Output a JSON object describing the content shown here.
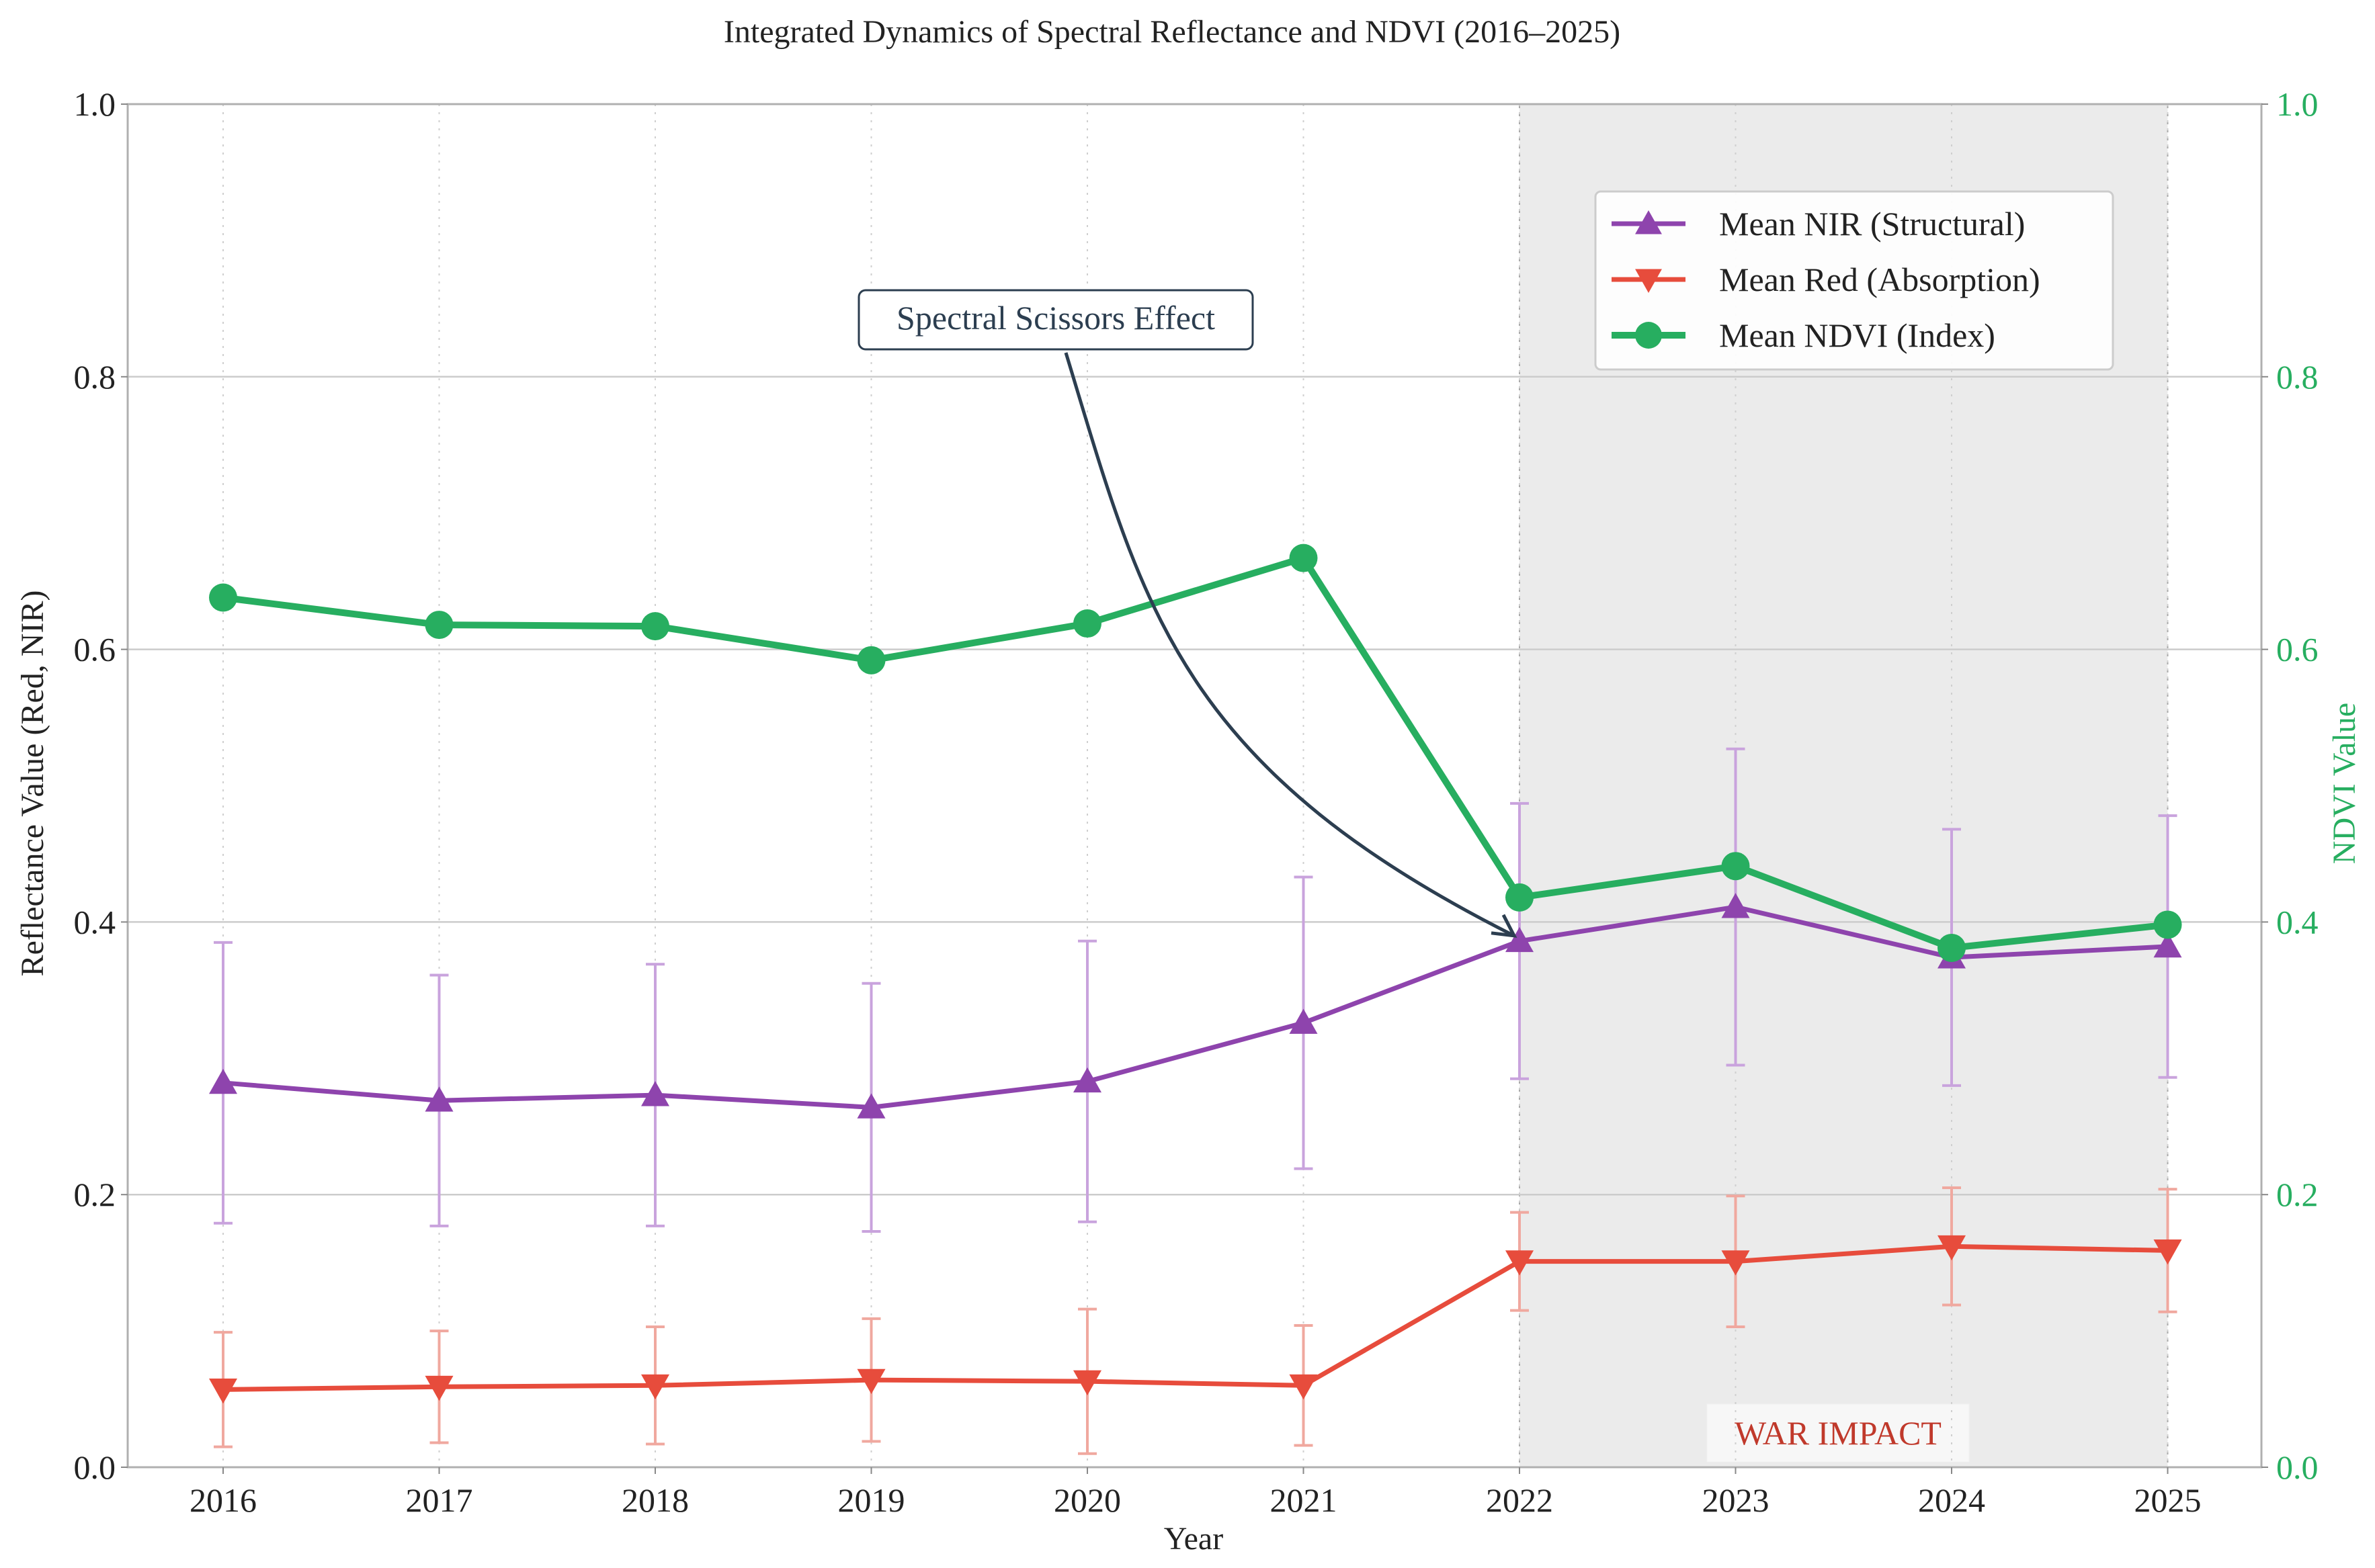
{
  "colors": {
    "nir": "#8e44ad",
    "nir_err": "#c9a3dd",
    "red": "#e74c3c",
    "red_err": "#f0a89f",
    "ndvi": "#27ae60",
    "ndvi_axis": "#27ae60",
    "war_text": "#c0392b",
    "war_shade": "#ebebeb",
    "annotation": "#2c3e50",
    "grid": "#cccccc",
    "text": "#222222"
  },
  "chart_data": {
    "type": "line",
    "title": "Integrated Dynamics of Spectral Reflectance and NDVI (2016–2025)",
    "xlabel": "Year",
    "ylabel_left": "Reflectance Value (Red, NIR)",
    "ylabel_right": "NDVI Value",
    "x": [
      "2016",
      "2017",
      "2018",
      "2019",
      "2020",
      "2021",
      "2022",
      "2023",
      "2024",
      "2025"
    ],
    "ylim_left": [
      0,
      1
    ],
    "ylim_right": [
      0,
      1
    ],
    "yticks_left": [
      "0.0",
      "0.2",
      "0.4",
      "0.6",
      "0.8",
      "1.0"
    ],
    "yticks_right": [
      "0.0",
      "0.2",
      "0.4",
      "0.6",
      "0.8",
      "1.0"
    ],
    "grid": true,
    "legend_position": "top-right",
    "series": [
      {
        "name": "Mean NIR (Structural)",
        "axis": "left",
        "marker": "triangle-up",
        "values": [
          0.282,
          0.269,
          0.273,
          0.264,
          0.283,
          0.326,
          0.386,
          0.411,
          0.374,
          0.382
        ],
        "error": [
          0.103,
          0.092,
          0.096,
          0.091,
          0.103,
          0.107,
          0.101,
          0.116,
          0.094,
          0.096
        ]
      },
      {
        "name": "Mean Red (Absorption)",
        "axis": "left",
        "marker": "triangle-down",
        "values": [
          0.057,
          0.059,
          0.06,
          0.064,
          0.063,
          0.06,
          0.151,
          0.151,
          0.162,
          0.159
        ],
        "error": [
          0.042,
          0.041,
          0.043,
          0.045,
          0.053,
          0.044,
          0.036,
          0.048,
          0.043,
          0.045
        ]
      },
      {
        "name": "Mean NDVI (Index)",
        "axis": "right",
        "marker": "circle",
        "values": [
          0.638,
          0.618,
          0.617,
          0.592,
          0.619,
          0.667,
          0.418,
          0.441,
          0.381,
          0.398
        ]
      }
    ],
    "shaded_region": {
      "x_start": "2022",
      "x_end": "2025",
      "label": "WAR IMPACT"
    },
    "annotation": {
      "text": "Spectral Scissors Effect",
      "points_to": {
        "x": "2022",
        "y": 0.386
      }
    }
  }
}
